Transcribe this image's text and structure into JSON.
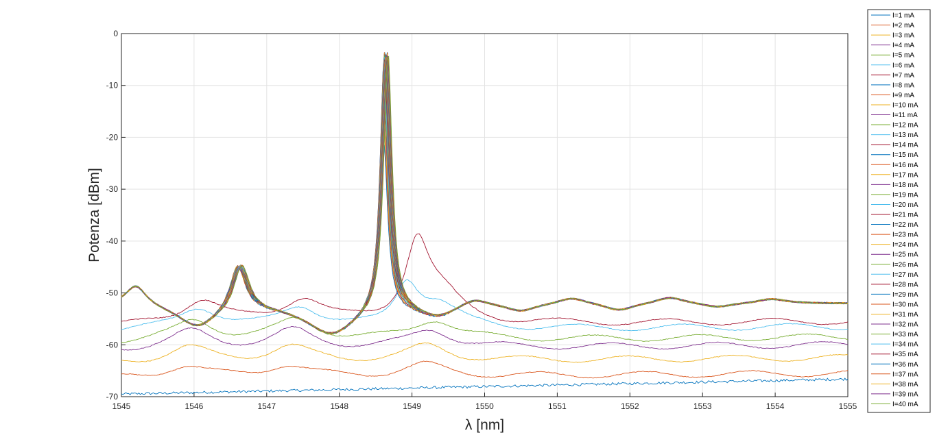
{
  "chart_data": {
    "type": "line",
    "xlabel": "λ [nm]",
    "ylabel": "Potenza [dBm]",
    "xlim": [
      1545,
      1555
    ],
    "ylim": [
      -70,
      0
    ],
    "xticks": [
      "1545",
      "1546",
      "1547",
      "1548",
      "1549",
      "1550",
      "1551",
      "1552",
      "1553",
      "1554",
      "1555"
    ],
    "yticks": [
      "0",
      "-10",
      "-20",
      "-30",
      "-40",
      "-50",
      "-60",
      "-70"
    ],
    "grid": true,
    "legend_position": "outside-right",
    "main_peak": {
      "wavelength_nm": 1548.63,
      "peak_dBm": -2
    },
    "secondary_peaks_nm": [
      1545.2,
      1546.6,
      1549.85,
      1551.2,
      1552.55,
      1553.95
    ],
    "series": [
      {
        "name": "I=1 mA",
        "color": "#0072BD",
        "baseline_dBm": -69.5
      },
      {
        "name": "I=2 mA",
        "color": "#D95319",
        "baseline_dBm": -66.5
      },
      {
        "name": "I=3 mA",
        "color": "#EDB120",
        "baseline_dBm": -63.5
      },
      {
        "name": "I=4 mA",
        "color": "#7E2F8E",
        "baseline_dBm": -61.0
      },
      {
        "name": "I=5 mA",
        "color": "#77AC30",
        "baseline_dBm": -59.5
      },
      {
        "name": "I=6 mA",
        "color": "#4DBEEE",
        "baseline_dBm": -57.5
      },
      {
        "name": "I=7 mA",
        "color": "#A2142F",
        "baseline_dBm": -56.5
      },
      {
        "name": "I=8 mA",
        "color": "#0072BD",
        "baseline_dBm": -55.0
      },
      {
        "name": "I=9 mA",
        "color": "#D95319",
        "baseline_dBm": -54.0
      },
      {
        "name": "I=10 mA",
        "color": "#EDB120",
        "baseline_dBm": -53.0
      },
      {
        "name": "I=11 mA",
        "color": "#7E2F8E",
        "baseline_dBm": -52.5
      },
      {
        "name": "I=12 mA",
        "color": "#77AC30",
        "baseline_dBm": -52.3
      },
      {
        "name": "I=13 mA",
        "color": "#4DBEEE",
        "baseline_dBm": -52.2
      },
      {
        "name": "I=14 mA",
        "color": "#A2142F",
        "baseline_dBm": -52.2
      },
      {
        "name": "I=15 mA",
        "color": "#0072BD",
        "baseline_dBm": -52.2
      },
      {
        "name": "I=16 mA",
        "color": "#D95319",
        "baseline_dBm": -52.1
      },
      {
        "name": "I=17 mA",
        "color": "#EDB120",
        "baseline_dBm": -52.1
      },
      {
        "name": "I=18 mA",
        "color": "#7E2F8E",
        "baseline_dBm": -52.1
      },
      {
        "name": "I=19 mA",
        "color": "#77AC30",
        "baseline_dBm": -52.1
      },
      {
        "name": "I=20 mA",
        "color": "#4DBEEE",
        "baseline_dBm": -52.0
      },
      {
        "name": "I=21 mA",
        "color": "#A2142F",
        "baseline_dBm": -52.0
      },
      {
        "name": "I=22 mA",
        "color": "#0072BD",
        "baseline_dBm": -52.0
      },
      {
        "name": "I=23 mA",
        "color": "#D95319",
        "baseline_dBm": -52.0
      },
      {
        "name": "I=24 mA",
        "color": "#EDB120",
        "baseline_dBm": -52.0
      },
      {
        "name": "I=25 mA",
        "color": "#7E2F8E",
        "baseline_dBm": -52.0
      },
      {
        "name": "I=26 mA",
        "color": "#77AC30",
        "baseline_dBm": -52.0
      },
      {
        "name": "I=27 mA",
        "color": "#4DBEEE",
        "baseline_dBm": -52.0
      },
      {
        "name": "I=28 mA",
        "color": "#A2142F",
        "baseline_dBm": -52.0
      },
      {
        "name": "I=29 mA",
        "color": "#0072BD",
        "baseline_dBm": -52.0
      },
      {
        "name": "I=30 mA",
        "color": "#D95319",
        "baseline_dBm": -52.0
      },
      {
        "name": "I=31 mA",
        "color": "#EDB120",
        "baseline_dBm": -52.0
      },
      {
        "name": "I=32 mA",
        "color": "#7E2F8E",
        "baseline_dBm": -52.0
      },
      {
        "name": "I=33 mA",
        "color": "#77AC30",
        "baseline_dBm": -52.0
      },
      {
        "name": "I=34 mA",
        "color": "#4DBEEE",
        "baseline_dBm": -52.0
      },
      {
        "name": "I=35 mA",
        "color": "#A2142F",
        "baseline_dBm": -52.0
      },
      {
        "name": "I=36 mA",
        "color": "#0072BD",
        "baseline_dBm": -52.0
      },
      {
        "name": "I=37 mA",
        "color": "#D95319",
        "baseline_dBm": -52.0
      },
      {
        "name": "I=38 mA",
        "color": "#EDB120",
        "baseline_dBm": -52.0
      },
      {
        "name": "I=39 mA",
        "color": "#7E2F8E",
        "baseline_dBm": -52.0
      },
      {
        "name": "I=40 mA",
        "color": "#77AC30",
        "baseline_dBm": -52.0
      }
    ]
  }
}
